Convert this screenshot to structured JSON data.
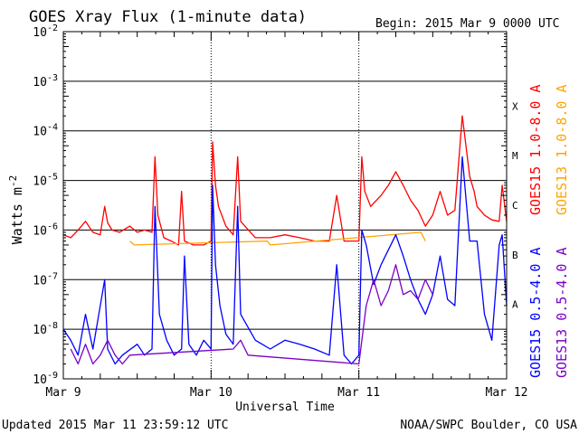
{
  "chart_data": {
    "type": "line",
    "title": "GOES Xray Flux (1-minute data)",
    "begin_label": "Begin:  2015 Mar 9 0000 UTC",
    "xlabel": "Universal Time",
    "ylabel_base": "Watts m",
    "ylabel_exp": "-2",
    "x_range_days": [
      0,
      3
    ],
    "x_ticks": [
      {
        "day": 0,
        "label": "Mar 9"
      },
      {
        "day": 1,
        "label": "Mar 10"
      },
      {
        "day": 2,
        "label": "Mar 11"
      },
      {
        "day": 3,
        "label": "Mar 12"
      }
    ],
    "y_scale": "log",
    "ylim": [
      1e-09,
      0.01
    ],
    "y_ticks": [
      {
        "exp": -9,
        "label": "10",
        "sup": "-9"
      },
      {
        "exp": -8,
        "label": "10",
        "sup": "-8"
      },
      {
        "exp": -7,
        "label": "10",
        "sup": "-7"
      },
      {
        "exp": -6,
        "label": "10",
        "sup": "-6"
      },
      {
        "exp": -5,
        "label": "10",
        "sup": "-5"
      },
      {
        "exp": -4,
        "label": "10",
        "sup": "-4"
      },
      {
        "exp": -3,
        "label": "10",
        "sup": "-3"
      },
      {
        "exp": -2,
        "label": "10",
        "sup": "-2"
      }
    ],
    "flare_classes": [
      {
        "label": "A",
        "exp": -7.5
      },
      {
        "label": "B",
        "exp": -6.5
      },
      {
        "label": "C",
        "exp": -5.5
      },
      {
        "label": "M",
        "exp": -4.5
      },
      {
        "label": "X",
        "exp": -3.5
      }
    ],
    "series": [
      {
        "name": "GOES15 1.0-8.0 A",
        "color": "#ff0000",
        "x": [
          0,
          0.05,
          0.1,
          0.15,
          0.2,
          0.25,
          0.28,
          0.3,
          0.33,
          0.38,
          0.45,
          0.5,
          0.55,
          0.6,
          0.62,
          0.64,
          0.68,
          0.73,
          0.78,
          0.8,
          0.82,
          0.88,
          0.95,
          1.0,
          1.01,
          1.03,
          1.05,
          1.1,
          1.15,
          1.18,
          1.2,
          1.3,
          1.4,
          1.5,
          1.6,
          1.7,
          1.8,
          1.85,
          1.9,
          1.95,
          2.0,
          2.02,
          2.04,
          2.08,
          2.15,
          2.2,
          2.25,
          2.3,
          2.35,
          2.4,
          2.45,
          2.5,
          2.55,
          2.6,
          2.65,
          2.7,
          2.75,
          2.78,
          2.8,
          2.85,
          2.9,
          2.95,
          2.97,
          3.0
        ],
        "y": [
          8e-07,
          7e-07,
          1e-06,
          1.5e-06,
          9e-07,
          8e-07,
          3e-06,
          1.4e-06,
          1e-06,
          9e-07,
          1.2e-06,
          9e-07,
          1e-06,
          9e-07,
          3e-05,
          2e-06,
          7e-07,
          6e-07,
          5e-07,
          6e-06,
          6e-07,
          5e-07,
          5e-07,
          6e-07,
          6e-05,
          8e-06,
          3e-06,
          1.2e-06,
          8e-07,
          3e-05,
          1.5e-06,
          7e-07,
          7e-07,
          8e-07,
          7e-07,
          6e-07,
          6e-07,
          5e-06,
          6e-07,
          6e-07,
          6e-07,
          3e-05,
          6e-06,
          3e-06,
          5e-06,
          8e-06,
          1.5e-05,
          8e-06,
          4e-06,
          2.5e-06,
          1.2e-06,
          2e-06,
          6e-06,
          2e-06,
          2.5e-06,
          0.0002,
          1.2e-05,
          6e-06,
          3e-06,
          2e-06,
          1.6e-06,
          1.5e-06,
          8e-06,
          1.5e-06
        ]
      },
      {
        "name": "GOES13 1.0-8.0 A",
        "color": "#ffa500",
        "x": [
          0.45,
          0.48,
          1.38,
          1.4,
          2.42,
          2.45
        ],
        "y": [
          6e-07,
          5e-07,
          6e-07,
          5e-07,
          9e-07,
          6e-07
        ]
      },
      {
        "name": "GOES15 0.5-4.0 A",
        "color": "#0000ff",
        "x": [
          0,
          0.05,
          0.1,
          0.15,
          0.2,
          0.28,
          0.3,
          0.35,
          0.4,
          0.5,
          0.55,
          0.6,
          0.62,
          0.65,
          0.7,
          0.75,
          0.8,
          0.82,
          0.85,
          0.9,
          0.95,
          1.0,
          1.01,
          1.03,
          1.06,
          1.1,
          1.15,
          1.18,
          1.2,
          1.3,
          1.4,
          1.5,
          1.6,
          1.7,
          1.8,
          1.85,
          1.9,
          1.95,
          2.0,
          2.02,
          2.05,
          2.1,
          2.15,
          2.2,
          2.25,
          2.3,
          2.35,
          2.4,
          2.45,
          2.5,
          2.55,
          2.6,
          2.65,
          2.7,
          2.75,
          2.8,
          2.85,
          2.9,
          2.95,
          2.97,
          3.0
        ],
        "y": [
          1e-08,
          6e-09,
          3e-09,
          2e-08,
          4e-09,
          1e-07,
          4e-09,
          2e-09,
          3e-09,
          5e-09,
          3e-09,
          4e-09,
          3e-06,
          2e-08,
          6e-09,
          3e-09,
          4e-09,
          3e-07,
          5e-09,
          3e-09,
          6e-09,
          4e-09,
          8e-06,
          2e-07,
          3e-08,
          8e-09,
          5e-09,
          3e-06,
          2e-08,
          6e-09,
          4e-09,
          6e-09,
          5e-09,
          4e-09,
          3e-09,
          2e-07,
          3e-09,
          2e-09,
          3e-09,
          1e-06,
          5e-07,
          8e-08,
          2e-07,
          4e-07,
          8e-07,
          3e-07,
          1e-07,
          4e-08,
          2e-08,
          5e-08,
          3e-07,
          4e-08,
          3e-08,
          3e-05,
          6e-07,
          6e-07,
          2e-08,
          6e-09,
          5e-07,
          8e-07,
          3e-08
        ]
      },
      {
        "name": "GOES13 0.5-4.0 A",
        "color": "#7b00c8",
        "x": [
          0.05,
          0.1,
          0.15,
          0.2,
          0.25,
          0.3,
          0.35,
          0.4,
          0.45,
          1.15,
          1.2,
          1.25,
          2.0,
          2.05,
          2.1,
          2.15,
          2.2,
          2.25,
          2.3,
          2.35,
          2.4,
          2.45,
          2.5
        ],
        "y": [
          4e-09,
          2e-09,
          5e-09,
          2e-09,
          3e-09,
          6e-09,
          3e-09,
          2e-09,
          3e-09,
          4e-09,
          6e-09,
          3e-09,
          2e-09,
          3e-08,
          1e-07,
          3e-08,
          6e-08,
          2e-07,
          5e-08,
          6e-08,
          4e-08,
          1e-07,
          5e-08
        ]
      }
    ]
  },
  "footer": {
    "updated": "Updated 2015 Mar 11 23:59:12 UTC",
    "credit": "NOAA/SWPC Boulder, CO USA"
  }
}
